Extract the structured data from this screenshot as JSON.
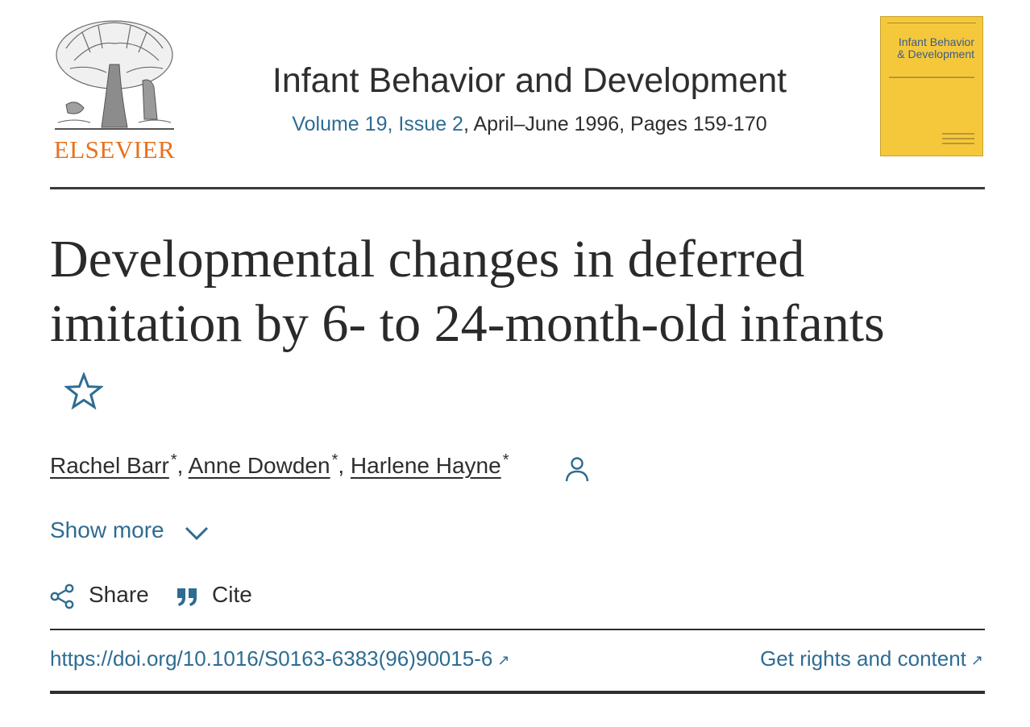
{
  "publisher": {
    "logo_text": "ELSEVIER",
    "logo_icon": "elsevier-tree-icon",
    "accent_color": "#e9711c"
  },
  "journal": {
    "title": "Infant Behavior and Development",
    "issue_link": "Volume 19, Issue 2",
    "issue_rest": ", April–June 1996, Pages 159-170",
    "cover": {
      "title": "Infant Behavior & Development",
      "color": "#f5c83c"
    }
  },
  "article": {
    "title": "Developmental changes in deferred imitation by 6- to 24-month-old infants",
    "favorite_icon": "star-outline-icon",
    "authors": [
      {
        "name": "Rachel Barr",
        "marker": "*",
        "separator": ", "
      },
      {
        "name": "Anne Dowden",
        "marker": "*",
        "separator": ", "
      },
      {
        "name": "Harlene Hayne",
        "marker": "*",
        "separator": ""
      }
    ],
    "author_info_icon": "person-icon"
  },
  "actions": {
    "show_more": "Show more",
    "show_more_icon": "chevron-down-icon",
    "share": "Share",
    "share_icon": "share-icon",
    "cite": "Cite",
    "cite_icon": "quote-icon"
  },
  "links": {
    "doi": "https://doi.org/10.1016/S0163-6383(96)90015-6",
    "rights": "Get rights and content",
    "external_icon": "external-link-icon",
    "link_color": "#2e6c92"
  }
}
